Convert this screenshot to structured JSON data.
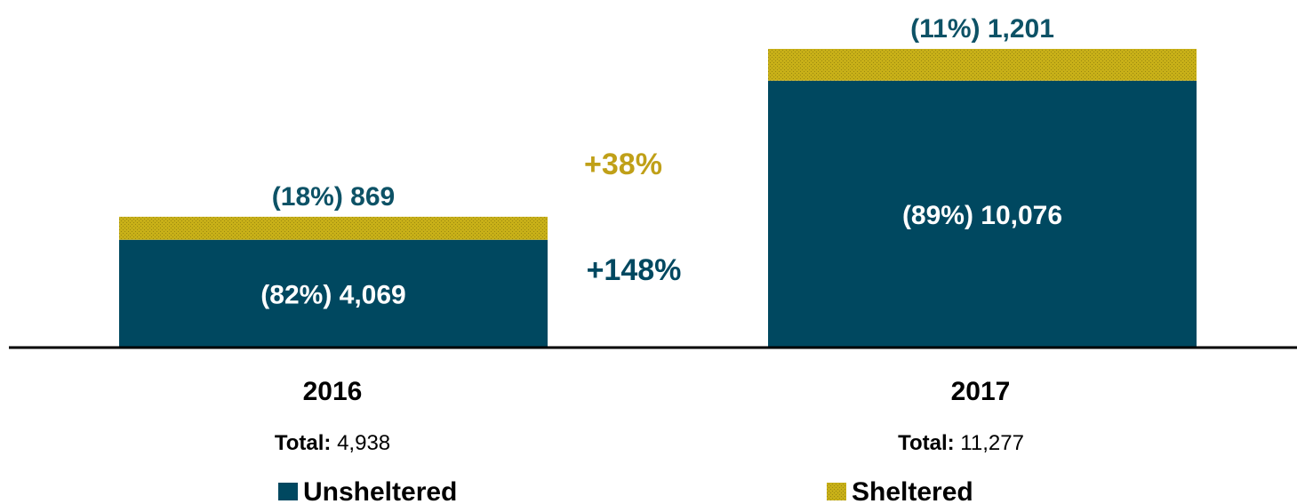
{
  "chart_data": {
    "type": "bar",
    "stacked": true,
    "categories": [
      "2016",
      "2017"
    ],
    "series": [
      {
        "name": "Unsheltered",
        "values": [
          4069,
          10076
        ],
        "labels": [
          "(82%) 4,069",
          "(89%) 10,076"
        ],
        "color": "#004860"
      },
      {
        "name": "Sheltered",
        "values": [
          869,
          1201
        ],
        "labels": [
          "(18%) 869",
          "(11%) 1,201"
        ],
        "color": "#c8b018"
      }
    ],
    "totals": [
      {
        "prefix": "Total:",
        "value": "4,938"
      },
      {
        "prefix": "Total:",
        "value": "11,277"
      }
    ],
    "changes": [
      {
        "text": "+38%",
        "series": "Sheltered",
        "color": "#c0a018"
      },
      {
        "text": "+148%",
        "series": "Unsheltered",
        "color": "#004860"
      }
    ],
    "ylim": [
      0,
      11277
    ],
    "grid": false,
    "legend_position": "bottom",
    "colors": {
      "label_dark": "#0d5266",
      "axis": "#000000"
    }
  }
}
